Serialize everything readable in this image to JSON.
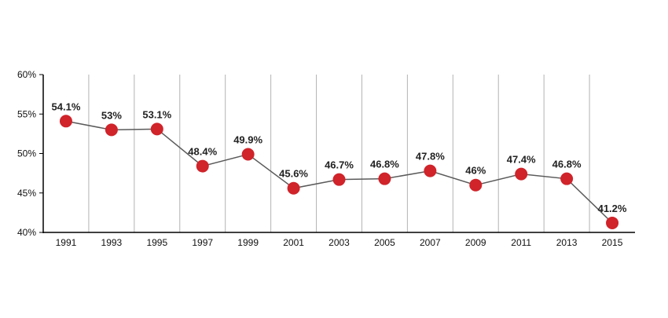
{
  "chart_data": {
    "type": "line",
    "title": "",
    "xlabel": "",
    "ylabel": "",
    "x": [
      "1991",
      "1993",
      "1995",
      "1997",
      "1999",
      "2001",
      "2003",
      "2005",
      "2007",
      "2009",
      "2011",
      "2013",
      "2015"
    ],
    "series": [
      {
        "values": [
          54.1,
          53,
          53.1,
          48.4,
          49.9,
          45.6,
          46.7,
          46.8,
          47.8,
          46,
          47.4,
          46.8,
          41.2
        ],
        "labels": [
          "54.1%",
          "53%",
          "53.1%",
          "48.4%",
          "49.9%",
          "45.6%",
          "46.7%",
          "46.8%",
          "47.8%",
          "46%",
          "47.4%",
          "46.8%",
          "41.2%"
        ],
        "line_color": "#5a5a5a",
        "marker_color": "#d0232a"
      }
    ],
    "ylim": [
      40,
      60
    ],
    "yticks": [
      40,
      45,
      50,
      55,
      60
    ],
    "ytick_labels": [
      "40%",
      "45%",
      "50%",
      "55%",
      "60%"
    ],
    "grid": "vertical",
    "grid_color": "#b3b3b3",
    "axis_color": "#000000",
    "legend": "none"
  }
}
